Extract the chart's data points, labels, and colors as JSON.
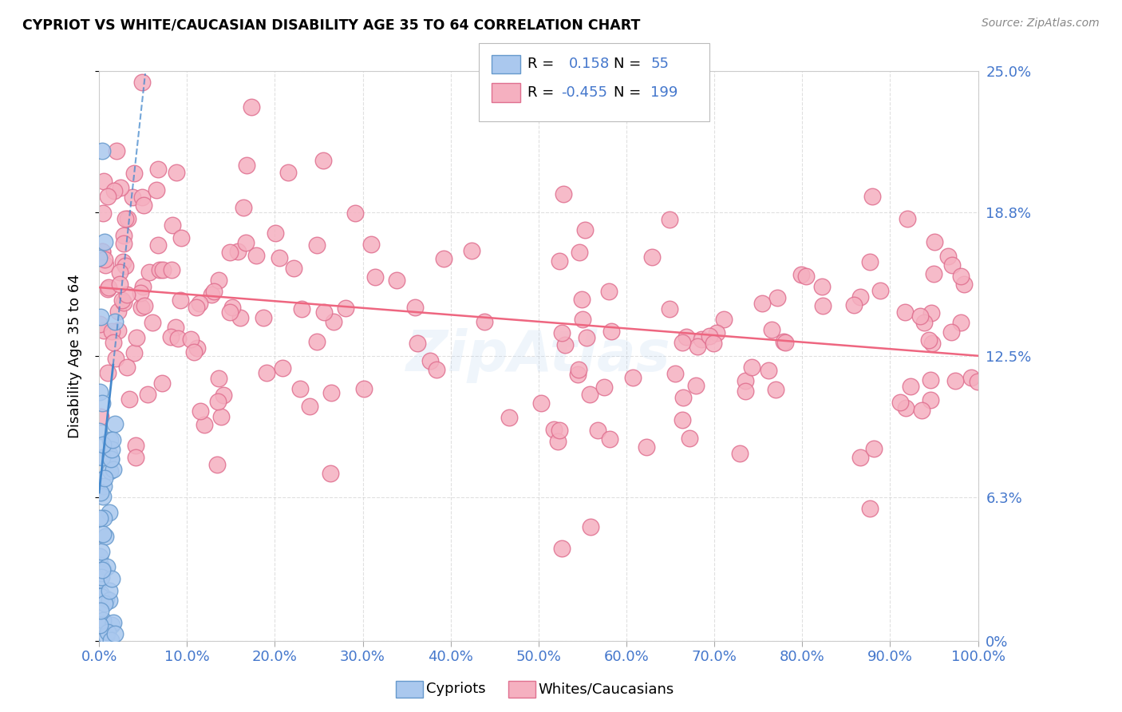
{
  "title": "CYPRIOT VS WHITE/CAUCASIAN DISABILITY AGE 35 TO 64 CORRELATION CHART",
  "source": "Source: ZipAtlas.com",
  "ylabel": "Disability Age 35 to 64",
  "xlim": [
    0,
    1.0
  ],
  "ylim": [
    0,
    0.25
  ],
  "yticks": [
    0.0,
    0.063,
    0.125,
    0.188,
    0.25
  ],
  "ytick_labels": [
    "0%",
    "6.3%",
    "12.5%",
    "18.8%",
    "25.0%"
  ],
  "xtick_labels": [
    "0.0%",
    "10.0%",
    "20.0%",
    "30.0%",
    "40.0%",
    "50.0%",
    "60.0%",
    "70.0%",
    "80.0%",
    "90.0%",
    "100.0%"
  ],
  "cypriot_R": 0.158,
  "cypriot_N": 55,
  "white_R": -0.455,
  "white_N": 199,
  "cypriot_color": "#aac8ee",
  "cypriot_edge": "#6699cc",
  "white_color": "#f5b0c0",
  "white_edge": "#e07090",
  "trendline_cypriot_color": "#4488cc",
  "trendline_white_color": "#ee6680",
  "watermark": "ZipAtlas",
  "background_color": "#ffffff",
  "grid_color": "#cccccc"
}
